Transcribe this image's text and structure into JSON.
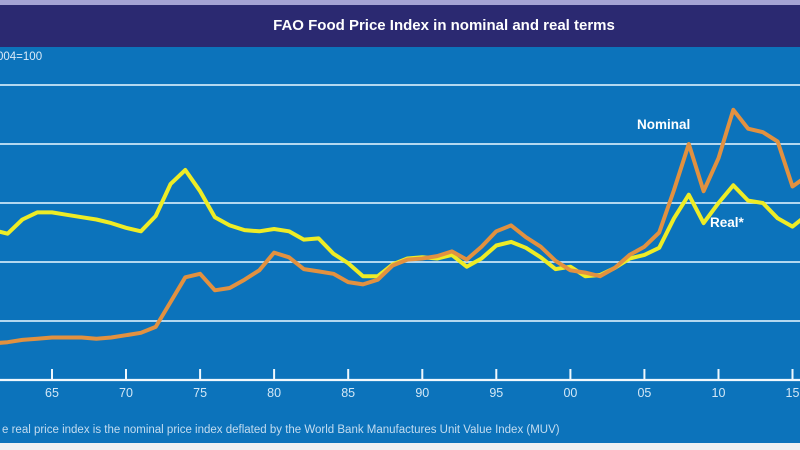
{
  "header": {
    "title": "FAO Food Price Index in nominal and real terms"
  },
  "axis_note": "004=100",
  "labels": {
    "nominal": "Nominal",
    "real": "Real*"
  },
  "footnote": "e real price index is the nominal price index deflated by the World Bank Manufactures Unit Value Index (MUV)",
  "colors": {
    "top_strip": "#a5a3d4",
    "title_band": "#2b2971",
    "chart_bg": "#0c73bb",
    "gridline": "#cbe7f7",
    "axis": "#f0f8fd",
    "tick_label": "#d2e7f6",
    "nominal_line": "#e29140",
    "real_line": "#eeec26",
    "series_label": "#ffffff",
    "footnote_text": "#c3dcf0",
    "bottom_strip": "#edf0f2"
  },
  "chart_data": {
    "type": "line",
    "title": "FAO Food Price Index in nominal and real terms",
    "unit_label_visible": "004=100",
    "x": [
      1961,
      1962,
      1963,
      1964,
      1965,
      1966,
      1967,
      1968,
      1969,
      1970,
      1971,
      1972,
      1973,
      1974,
      1975,
      1976,
      1977,
      1978,
      1979,
      1980,
      1981,
      1982,
      1983,
      1984,
      1985,
      1986,
      1987,
      1988,
      1989,
      1990,
      1991,
      1992,
      1993,
      1994,
      1995,
      1996,
      1997,
      1998,
      1999,
      2000,
      2001,
      2002,
      2003,
      2004,
      2005,
      2006,
      2007,
      2008,
      2009,
      2010,
      2011,
      2012,
      2013,
      2014,
      2015,
      2016
    ],
    "series": [
      {
        "name": "Real*",
        "color": "#eeec26",
        "values": [
          127,
          124,
          136,
          142,
          142,
          140,
          138,
          136,
          133,
          129,
          126,
          139,
          166,
          178,
          160,
          138,
          131,
          127,
          126,
          128,
          126,
          119,
          120,
          107,
          99,
          88,
          88,
          98,
          103,
          104,
          103,
          106,
          96,
          103,
          114,
          117,
          112,
          104,
          94,
          96,
          88,
          89,
          95,
          103,
          106,
          112,
          137,
          157,
          133,
          150,
          165,
          152,
          150,
          137,
          130,
          140
        ]
      },
      {
        "name": "Nominal",
        "color": "#e29140",
        "values": [
          31,
          32,
          34,
          35,
          36,
          36,
          36,
          35,
          36,
          38,
          40,
          45,
          66,
          87,
          90,
          76,
          78,
          85,
          93,
          108,
          104,
          94,
          92,
          90,
          83,
          81,
          85,
          97,
          102,
          103,
          105,
          109,
          102,
          113,
          126,
          131,
          121,
          113,
          101,
          93,
          91,
          88,
          95,
          106,
          113,
          125,
          161,
          200,
          160,
          188,
          229,
          213,
          210,
          202,
          164,
          173
        ]
      }
    ],
    "x_tick_years": [
      1965,
      1970,
      1975,
      1980,
      1985,
      1990,
      1995,
      2000,
      2005,
      2010,
      2015
    ],
    "x_tick_labels": [
      "65",
      "70",
      "75",
      "80",
      "85",
      "90",
      "95",
      "00",
      "05",
      "10",
      "15"
    ],
    "y_gridline_values": [
      50,
      100,
      150,
      200,
      250
    ],
    "y_base_value": 0,
    "ylim": [
      0,
      283
    ],
    "grid": "horizontal-only",
    "legend_position": "inline-labels"
  }
}
